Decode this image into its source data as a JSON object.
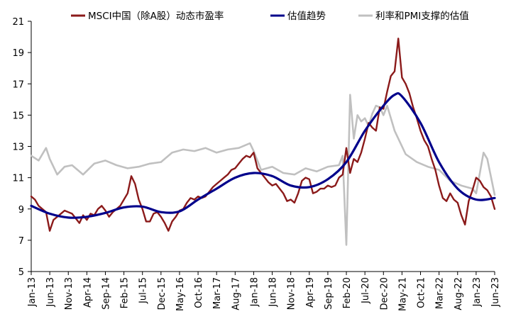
{
  "chart_data": {
    "type": "line",
    "title": "",
    "xlabel": "",
    "ylabel": "",
    "ylim": [
      5,
      21
    ],
    "yticks": [
      5,
      7,
      9,
      11,
      13,
      15,
      17,
      19,
      21
    ],
    "xlim": [
      "2013-01",
      "2023-06"
    ],
    "xticks": [
      "Jan-13",
      "Jun-13",
      "Nov-13",
      "Apr-14",
      "Sep-14",
      "Feb-15",
      "Jul-15",
      "Dec-15",
      "May-16",
      "Oct-16",
      "Mar-17",
      "Aug-17",
      "Jan-18",
      "Jun-18",
      "Nov-18",
      "Apr-19",
      "Sep-19",
      "Feb-20",
      "Jul-20",
      "Dec-20",
      "May-21",
      "Oct-21",
      "Mar-22",
      "Aug-22",
      "Jan-23",
      "Jun-23"
    ],
    "grid": false,
    "legend_position": "top",
    "series": [
      {
        "name": "MSCI中国（除A股）动态市盈率",
        "color": "#8B1A1A",
        "x": [
          "2013-01",
          "2013-02",
          "2013-03",
          "2013-04",
          "2013-05",
          "2013-06",
          "2013-07",
          "2013-08",
          "2013-09",
          "2013-10",
          "2013-11",
          "2013-12",
          "2014-01",
          "2014-02",
          "2014-03",
          "2014-04",
          "2014-05",
          "2014-06",
          "2014-07",
          "2014-08",
          "2014-09",
          "2014-10",
          "2014-11",
          "2014-12",
          "2015-01",
          "2015-02",
          "2015-03",
          "2015-04",
          "2015-05",
          "2015-06",
          "2015-07",
          "2015-08",
          "2015-09",
          "2015-10",
          "2015-11",
          "2015-12",
          "2016-01",
          "2016-02",
          "2016-03",
          "2016-04",
          "2016-05",
          "2016-06",
          "2016-07",
          "2016-08",
          "2016-09",
          "2016-10",
          "2016-11",
          "2016-12",
          "2017-01",
          "2017-02",
          "2017-03",
          "2017-04",
          "2017-05",
          "2017-06",
          "2017-07",
          "2017-08",
          "2017-09",
          "2017-10",
          "2017-11",
          "2017-12",
          "2018-01",
          "2018-02",
          "2018-03",
          "2018-04",
          "2018-05",
          "2018-06",
          "2018-07",
          "2018-08",
          "2018-09",
          "2018-10",
          "2018-11",
          "2018-12",
          "2019-01",
          "2019-02",
          "2019-03",
          "2019-04",
          "2019-05",
          "2019-06",
          "2019-07",
          "2019-08",
          "2019-09",
          "2019-10",
          "2019-11",
          "2019-12",
          "2020-01",
          "2020-02",
          "2020-03",
          "2020-04",
          "2020-05",
          "2020-06",
          "2020-07",
          "2020-08",
          "2020-09",
          "2020-10",
          "2020-11",
          "2020-12",
          "2021-01",
          "2021-02",
          "2021-03",
          "2021-04",
          "2021-05",
          "2021-06",
          "2021-07",
          "2021-08",
          "2021-09",
          "2021-10",
          "2021-11",
          "2021-12",
          "2022-01",
          "2022-02",
          "2022-03",
          "2022-04",
          "2022-05",
          "2022-06",
          "2022-07",
          "2022-08",
          "2022-09",
          "2022-10",
          "2022-11",
          "2022-12",
          "2023-01",
          "2023-02",
          "2023-03",
          "2023-04",
          "2023-05",
          "2023-06"
        ],
        "values": [
          9.8,
          9.6,
          9.2,
          9.0,
          8.8,
          7.6,
          8.3,
          8.5,
          8.7,
          8.9,
          8.8,
          8.7,
          8.4,
          8.1,
          8.6,
          8.3,
          8.7,
          8.6,
          9.0,
          9.2,
          8.9,
          8.5,
          8.8,
          9.0,
          9.2,
          9.6,
          10.0,
          11.1,
          10.6,
          9.6,
          9.0,
          8.2,
          8.2,
          8.7,
          8.8,
          8.5,
          8.1,
          7.6,
          8.2,
          8.5,
          8.9,
          9.0,
          9.4,
          9.7,
          9.6,
          9.8,
          9.7,
          9.8,
          10.1,
          10.4,
          10.6,
          10.8,
          11.0,
          11.2,
          11.5,
          11.6,
          11.9,
          12.2,
          12.4,
          12.3,
          12.6,
          11.6,
          11.3,
          11.0,
          10.7,
          10.5,
          10.6,
          10.3,
          10.0,
          9.5,
          9.6,
          9.4,
          10.0,
          10.8,
          11.0,
          10.9,
          10.0,
          10.1,
          10.3,
          10.3,
          10.5,
          10.4,
          10.5,
          11.0,
          11.2,
          12.9,
          11.3,
          12.2,
          12.0,
          12.6,
          13.5,
          14.5,
          14.2,
          14.0,
          15.5,
          15.4,
          16.5,
          17.5,
          17.8,
          19.9,
          17.4,
          17.0,
          16.4,
          15.5,
          14.8,
          14.0,
          13.4,
          13.0,
          12.2,
          11.5,
          10.5,
          9.7,
          9.5,
          10.0,
          9.6,
          9.4,
          8.6,
          8.0,
          9.5,
          10.2,
          11.0,
          10.8,
          10.4,
          10.2,
          9.8,
          9.0
        ]
      },
      {
        "name": "估值趋势",
        "color": "#00008B",
        "x": [
          "2013-01",
          "2013-06",
          "2013-11",
          "2014-04",
          "2014-09",
          "2015-02",
          "2015-07",
          "2015-12",
          "2016-05",
          "2016-10",
          "2017-03",
          "2017-08",
          "2018-01",
          "2018-06",
          "2018-11",
          "2019-04",
          "2019-09",
          "2020-02",
          "2020-07",
          "2020-12",
          "2021-03",
          "2021-05",
          "2021-10",
          "2022-03",
          "2022-08",
          "2023-01",
          "2023-06"
        ],
        "values": [
          9.2,
          8.7,
          8.45,
          8.5,
          8.75,
          9.1,
          9.15,
          8.8,
          8.85,
          9.6,
          10.3,
          11.0,
          11.3,
          11.1,
          10.5,
          10.4,
          10.9,
          12.0,
          14.0,
          15.6,
          16.3,
          16.2,
          14.5,
          12.0,
          10.3,
          9.6,
          9.7
        ]
      },
      {
        "name": "利率和PMI支撑的估值",
        "color": "#C0C0C0",
        "x": [
          "2013-01",
          "2013-03",
          "2013-05",
          "2013-06",
          "2013-08",
          "2013-10",
          "2013-12",
          "2014-03",
          "2014-06",
          "2014-09",
          "2014-12",
          "2015-03",
          "2015-06",
          "2015-09",
          "2015-12",
          "2016-03",
          "2016-06",
          "2016-09",
          "2016-12",
          "2017-03",
          "2017-06",
          "2017-09",
          "2017-12",
          "2018-01",
          "2018-03",
          "2018-06",
          "2018-09",
          "2018-12",
          "2019-03",
          "2019-06",
          "2019-09",
          "2019-12",
          "2020-01",
          "2020-02",
          "2020-03",
          "2020-04",
          "2020-05",
          "2020-06",
          "2020-07",
          "2020-08",
          "2020-09",
          "2020-10",
          "2020-11",
          "2020-12",
          "2021-01",
          "2021-03",
          "2021-06",
          "2021-09",
          "2021-12",
          "2022-03",
          "2022-06",
          "2022-09",
          "2022-12",
          "2023-01",
          "2023-03",
          "2023-04",
          "2023-06"
        ],
        "values": [
          12.4,
          12.1,
          12.9,
          12.2,
          11.2,
          11.7,
          11.8,
          11.2,
          11.9,
          12.1,
          11.8,
          11.6,
          11.7,
          11.9,
          12.0,
          12.6,
          12.8,
          12.7,
          12.9,
          12.6,
          12.8,
          12.9,
          13.2,
          12.7,
          11.5,
          11.7,
          11.3,
          11.2,
          11.6,
          11.4,
          11.7,
          11.8,
          12.4,
          6.7,
          16.3,
          13.5,
          15.0,
          14.6,
          14.8,
          14.3,
          15.1,
          15.6,
          15.5,
          15.0,
          15.6,
          14.0,
          12.5,
          12.0,
          11.7,
          11.5,
          10.8,
          10.5,
          10.3,
          10.0,
          12.6,
          12.2,
          9.9
        ]
      }
    ]
  }
}
